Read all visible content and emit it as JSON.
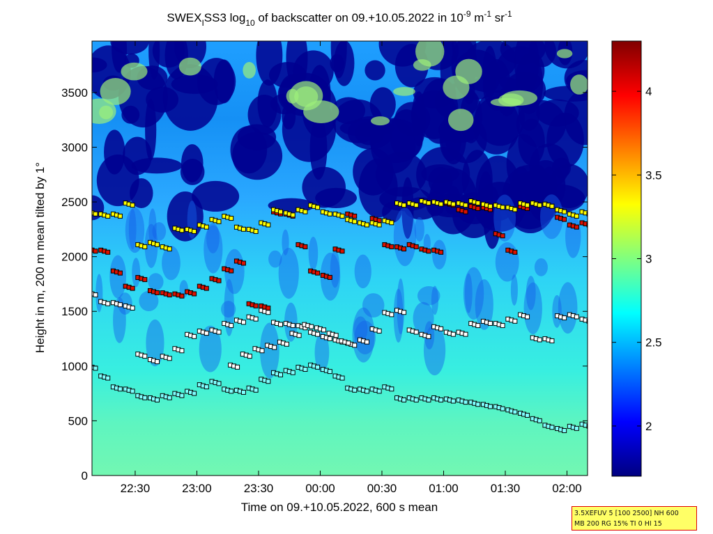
{
  "chart_data": {
    "type": "heatmap",
    "title": {
      "p1": "SWEX",
      "p1_sub": "I",
      "p2": "SS3 log",
      "p2_sub": "10",
      "p3": " of backscatter on 09.+10.05.2022 in 10",
      "p3_sup": "-9",
      "p4": " m",
      "p4_sup": "-1",
      "p5": " sr",
      "p5_sup": "-1"
    },
    "xlabel": "Time on 09.+10.05.2022, 600 s mean",
    "ylabel": "Height in m, 200 m mean tilted by 1°",
    "xlim": [
      "22:09",
      "02:10"
    ],
    "ylim": [
      0,
      3970
    ],
    "x_ticks": [
      "22:30",
      "23:00",
      "23:30",
      "00:00",
      "00:30",
      "01:00",
      "01:30",
      "02:00"
    ],
    "y_ticks": [
      0,
      500,
      1000,
      1500,
      2000,
      2500,
      3000,
      3500
    ],
    "colorbar": {
      "colormap": "jet",
      "range": [
        1.7,
        4.3
      ],
      "ticks": [
        "2",
        "2.5",
        "3",
        "3.5",
        "4"
      ]
    },
    "background_field": "log10 backscatter, ~2.7-2.8 (green) near the ground, ~2.5 (cyan) 500-1800 m, mixed blue / dark blue (1.8-2.4) above 2000 m with yellow-green patches near 3800 m",
    "marker_colors": {
      "white": "#ffffff",
      "cyan": "#7fffff",
      "yellow": "#ffff00",
      "red": "#dd1100"
    },
    "layer_series": [
      {
        "color": "cyan",
        "x": [
          "22:09",
          "22:15",
          "22:21",
          "22:27",
          "22:33",
          "22:39",
          "22:45",
          "22:51",
          "22:57",
          "23:03",
          "23:09",
          "23:15",
          "23:21",
          "23:27",
          "23:33",
          "23:39",
          "23:45",
          "23:51",
          "23:57",
          "00:03",
          "00:09",
          "00:15",
          "00:21",
          "00:27",
          "00:33",
          "00:39",
          "00:45",
          "00:51",
          "00:57",
          "01:03",
          "01:09",
          "01:15",
          "01:21",
          "01:27",
          "01:33",
          "01:39",
          "01:45",
          "01:51",
          "01:57",
          "02:03",
          "02:09"
        ],
        "y": [
          990,
          900,
          800,
          780,
          720,
          700,
          720,
          740,
          760,
          820,
          850,
          780,
          770,
          790,
          870,
          930,
          950,
          980,
          1000,
          960,
          900,
          790,
          780,
          780,
          800,
          700,
          700,
          700,
          700,
          690,
          680,
          660,
          640,
          620,
          590,
          560,
          510,
          450,
          420,
          440,
          460
        ]
      },
      {
        "color": "white",
        "x": [
          "22:09",
          "22:15",
          "22:21",
          "22:27",
          "22:33",
          "22:39",
          "22:45",
          "22:51",
          "22:57",
          "23:03",
          "23:09",
          "23:15",
          "23:21",
          "23:27",
          "23:33",
          "23:39",
          "23:45",
          "23:51",
          "23:57",
          "00:03",
          "00:09",
          "00:15",
          "00:21",
          "00:27",
          "00:33",
          "00:39",
          "00:45",
          "00:51",
          "00:57",
          "01:03",
          "01:09",
          "01:15",
          "01:21",
          "01:27",
          "01:33",
          "01:39",
          "01:45",
          "01:51",
          "01:57",
          "02:03",
          "02:09"
        ],
        "y": [
          1660,
          1580,
          1570,
          1540,
          1100,
          1050,
          1080,
          1150,
          1280,
          1310,
          1320,
          1380,
          1410,
          1440,
          1500,
          1390,
          1380,
          1360,
          1300,
          1260,
          1230,
          1200,
          1230,
          1330,
          1480,
          1500,
          1320,
          1280,
          1350,
          1300,
          1300,
          1380,
          1400,
          1380,
          1420,
          1460,
          1250,
          1240,
          1450,
          1460,
          1420
        ]
      },
      {
        "color": "white",
        "x": [
          "23:18",
          "23:24",
          "23:30",
          "23:36",
          "23:42",
          "23:48",
          "23:54",
          "00:00",
          "00:06",
          "00:12"
        ],
        "y": [
          1000,
          1100,
          1150,
          1180,
          1210,
          1290,
          1370,
          1340,
          1290,
          1220
        ]
      },
      {
        "color": "red",
        "x": [
          "22:09",
          "22:15",
          "22:21",
          "22:27",
          "22:33",
          "22:39",
          "22:45",
          "22:51",
          "22:57",
          "23:03",
          "23:09",
          "23:15",
          "23:21",
          "23:27",
          "23:33",
          "23:39",
          "23:45",
          "23:51",
          "23:57",
          "00:03",
          "00:09",
          "00:15",
          "00:21",
          "00:27",
          "00:33",
          "00:39",
          "00:45",
          "00:51",
          "00:57",
          "01:03",
          "01:09",
          "01:15",
          "01:21",
          "01:27",
          "01:33",
          "01:39",
          "01:45",
          "01:51",
          "01:57",
          "02:03",
          "02:09"
        ],
        "y": [
          2060,
          2050,
          1860,
          1720,
          1800,
          1680,
          1660,
          1650,
          1670,
          1720,
          1790,
          1880,
          1950,
          1560,
          1540,
          2400,
          2380,
          2100,
          1860,
          1820,
          2060,
          2380,
          2300,
          2340,
          2100,
          2080,
          2100,
          2060,
          2050,
          2480,
          2420,
          2450,
          2440,
          2200,
          2050,
          2450,
          2480,
          2470,
          2350,
          2280,
          2300
        ]
      },
      {
        "color": "yellow",
        "x": [
          "22:09",
          "22:15",
          "22:21",
          "22:27",
          "22:33",
          "22:39",
          "22:45",
          "22:51",
          "22:57",
          "23:03",
          "23:09",
          "23:15",
          "23:21",
          "23:27",
          "23:33",
          "23:39",
          "23:45",
          "23:51",
          "23:57",
          "00:03",
          "00:09",
          "00:15",
          "00:21",
          "00:27",
          "00:33",
          "00:39",
          "00:45",
          "00:51",
          "00:57",
          "01:03",
          "01:09",
          "01:15",
          "01:21",
          "01:27",
          "01:33",
          "01:39",
          "01:45",
          "01:51",
          "01:57",
          "02:03",
          "02:09"
        ],
        "y": [
          2400,
          2380,
          2380,
          2480,
          2100,
          2120,
          2080,
          2250,
          2240,
          2280,
          2330,
          2360,
          2260,
          2240,
          2300,
          2420,
          2390,
          2420,
          2460,
          2400,
          2380,
          2330,
          2300,
          2300,
          2320,
          2480,
          2480,
          2500,
          2490,
          2490,
          2480,
          2500,
          2470,
          2460,
          2440,
          2480,
          2480,
          2470,
          2420,
          2380,
          2400
        ]
      }
    ]
  },
  "info_box": {
    "line1": "3.5XEFUV 5 [100 2500] NH 600",
    "line2": "MB 200 RG 15% TI 0 HI 15"
  }
}
